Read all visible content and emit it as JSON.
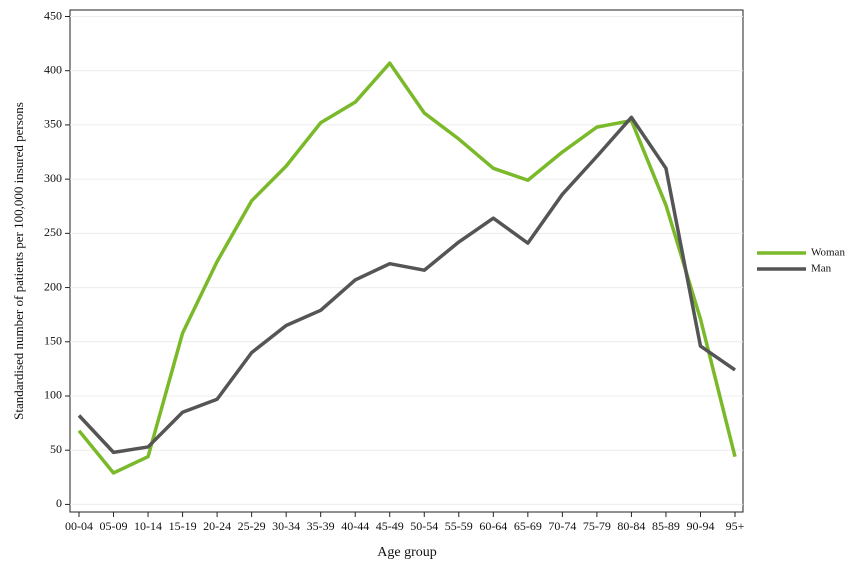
{
  "chart_data": {
    "type": "line",
    "x_label": "Age group",
    "y_label": "Standardised number of patients per 100,000 insured persons",
    "categories": [
      "00-04",
      "05-09",
      "10-14",
      "15-19",
      "20-24",
      "25-29",
      "30-34",
      "35-39",
      "40-44",
      "45-49",
      "50-54",
      "55-59",
      "60-64",
      "65-69",
      "70-74",
      "75-79",
      "80-84",
      "85-89",
      "90-94",
      "95+"
    ],
    "series": [
      {
        "name": "Woman",
        "color": "#7ab929",
        "values": [
          68,
          29,
          44,
          158,
          224,
          280,
          312,
          352,
          371,
          407,
          361,
          337,
          310,
          299,
          325,
          348,
          354,
          276,
          171,
          44
        ]
      },
      {
        "name": "Man",
        "color": "#555555",
        "values": [
          82,
          48,
          53,
          85,
          97,
          140,
          165,
          179,
          207,
          222,
          216,
          242,
          264,
          241,
          286,
          321,
          357,
          310,
          146,
          124
        ]
      }
    ],
    "ylim": [
      -7,
      456
    ],
    "yticks": [
      0,
      50,
      100,
      150,
      200,
      250,
      300,
      350,
      400,
      450
    ],
    "grid": true,
    "legend": "right"
  }
}
